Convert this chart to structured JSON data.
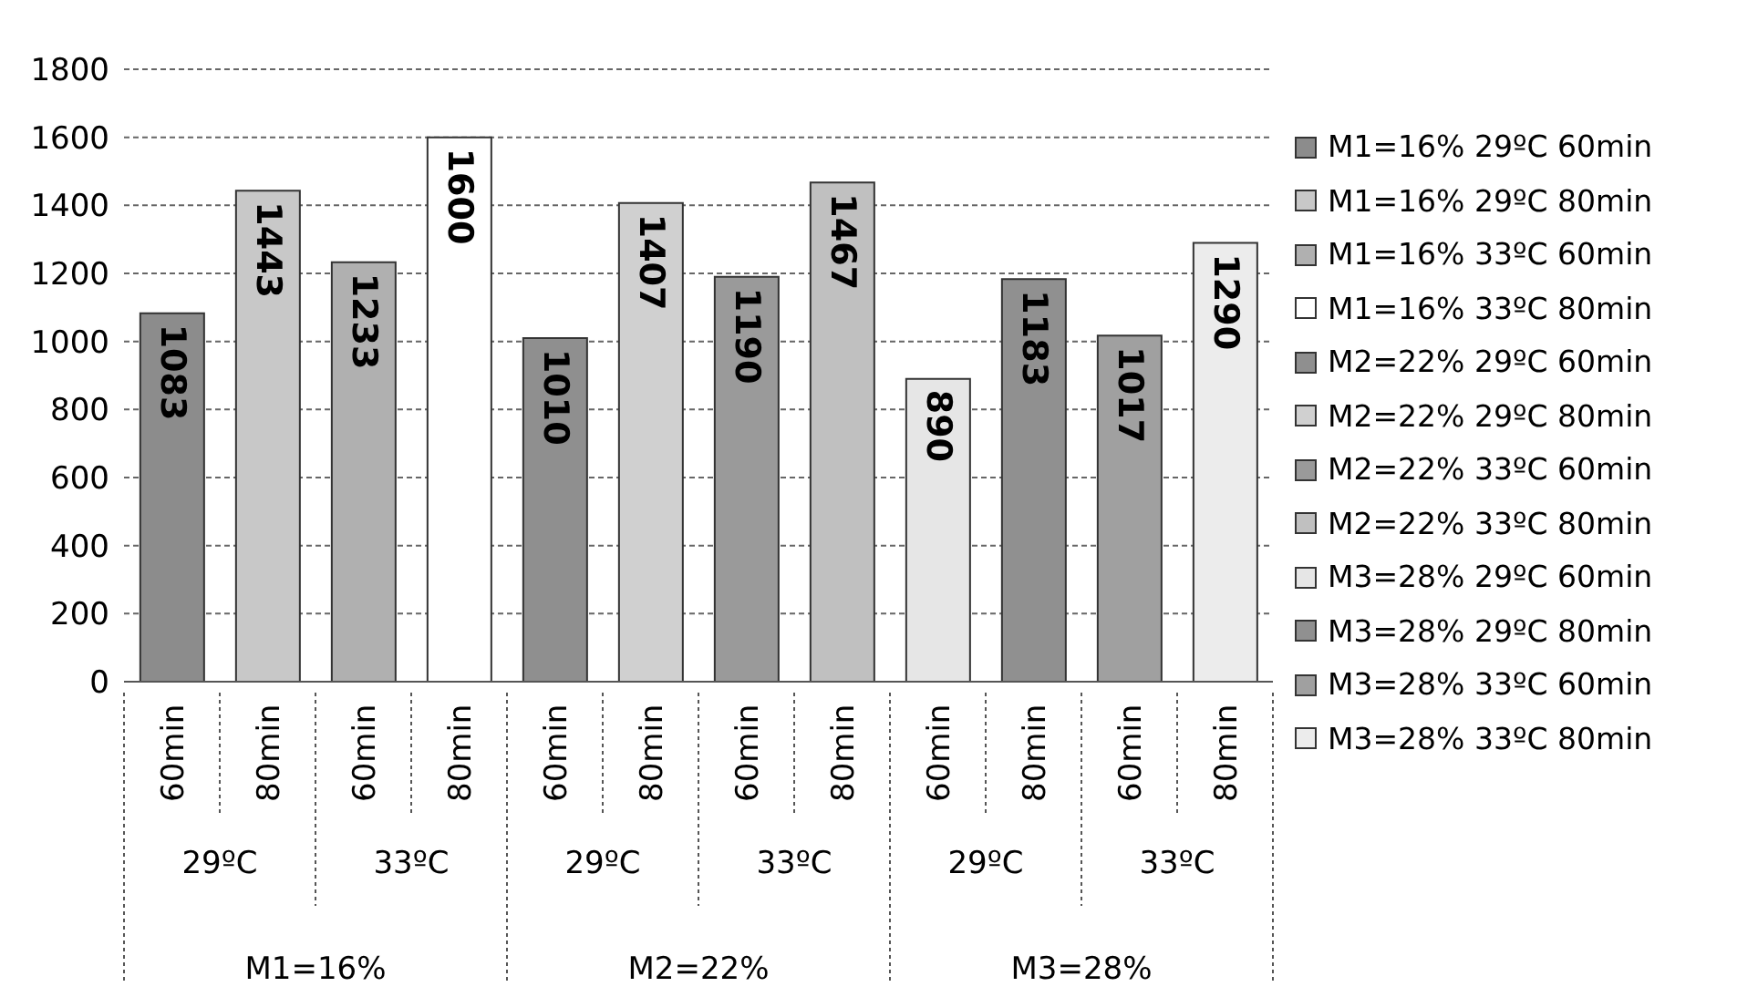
{
  "chart_data": {
    "type": "bar",
    "categories": [
      "60min",
      "80min",
      "60min",
      "80min",
      "60min",
      "80min",
      "60min",
      "80min",
      "60min",
      "80min",
      "60min",
      "80min"
    ],
    "series": [
      {
        "name": "M1=16% 29ºC 60min",
        "color": "#8c8c8c",
        "values": [
          1083,
          null,
          null,
          null,
          null,
          null,
          null,
          null,
          null,
          null,
          null,
          null
        ]
      },
      {
        "name": "M1=16% 29ºC 80min",
        "color": "#c8c8c8",
        "values": [
          null,
          1443,
          null,
          null,
          null,
          null,
          null,
          null,
          null,
          null,
          null,
          null
        ]
      },
      {
        "name": "M1=16% 33ºC 60min",
        "color": "#b0b0b0",
        "values": [
          null,
          null,
          1233,
          null,
          null,
          null,
          null,
          null,
          null,
          null,
          null,
          null
        ]
      },
      {
        "name": "M1=16% 33ºC 80min",
        "color": "#ffffff",
        "values": [
          null,
          null,
          null,
          1600,
          null,
          null,
          null,
          null,
          null,
          null,
          null,
          null
        ]
      },
      {
        "name": "M2=22% 29ºC 60min",
        "color": "#8f8f8f",
        "values": [
          null,
          null,
          null,
          null,
          1010,
          null,
          null,
          null,
          null,
          null,
          null,
          null
        ]
      },
      {
        "name": "M2=22% 29ºC 80min",
        "color": "#d0d0d0",
        "values": [
          null,
          null,
          null,
          null,
          null,
          1407,
          null,
          null,
          null,
          null,
          null,
          null
        ]
      },
      {
        "name": "M2=22% 33ºC 60min",
        "color": "#9a9a9a",
        "values": [
          null,
          null,
          null,
          null,
          null,
          null,
          1190,
          null,
          null,
          null,
          null,
          null
        ]
      },
      {
        "name": "M2=22% 33ºC 80min",
        "color": "#c0c0c0",
        "values": [
          null,
          null,
          null,
          null,
          null,
          null,
          null,
          1467,
          null,
          null,
          null,
          null
        ]
      },
      {
        "name": "M3=28% 29ºC 60min",
        "color": "#e6e6e6",
        "values": [
          null,
          null,
          null,
          null,
          null,
          null,
          null,
          null,
          890,
          null,
          null,
          null
        ]
      },
      {
        "name": "M3=28% 29ºC 80min",
        "color": "#909090",
        "values": [
          null,
          null,
          null,
          null,
          null,
          null,
          null,
          null,
          null,
          1183,
          null,
          null
        ]
      },
      {
        "name": "M3=28% 33ºC 60min",
        "color": "#a0a0a0",
        "values": [
          null,
          null,
          null,
          null,
          null,
          null,
          null,
          null,
          null,
          null,
          1017,
          null
        ]
      },
      {
        "name": "M3=28% 33ºC 80min",
        "color": "#ececec",
        "values": [
          null,
          null,
          null,
          null,
          null,
          null,
          null,
          null,
          null,
          null,
          null,
          1290
        ]
      }
    ],
    "ylim": [
      0,
      1800
    ],
    "yticks": [
      0,
      200,
      400,
      600,
      800,
      1000,
      1200,
      1400,
      1600,
      1800
    ],
    "grid": "y",
    "legend": "right",
    "data_labels": true,
    "annotations": [
      "29ºC",
      "33ºC",
      "29ºC",
      "33ºC",
      "29ºC",
      "33ºC",
      "M1=16%",
      "M2=22%",
      "M3=28%"
    ]
  }
}
